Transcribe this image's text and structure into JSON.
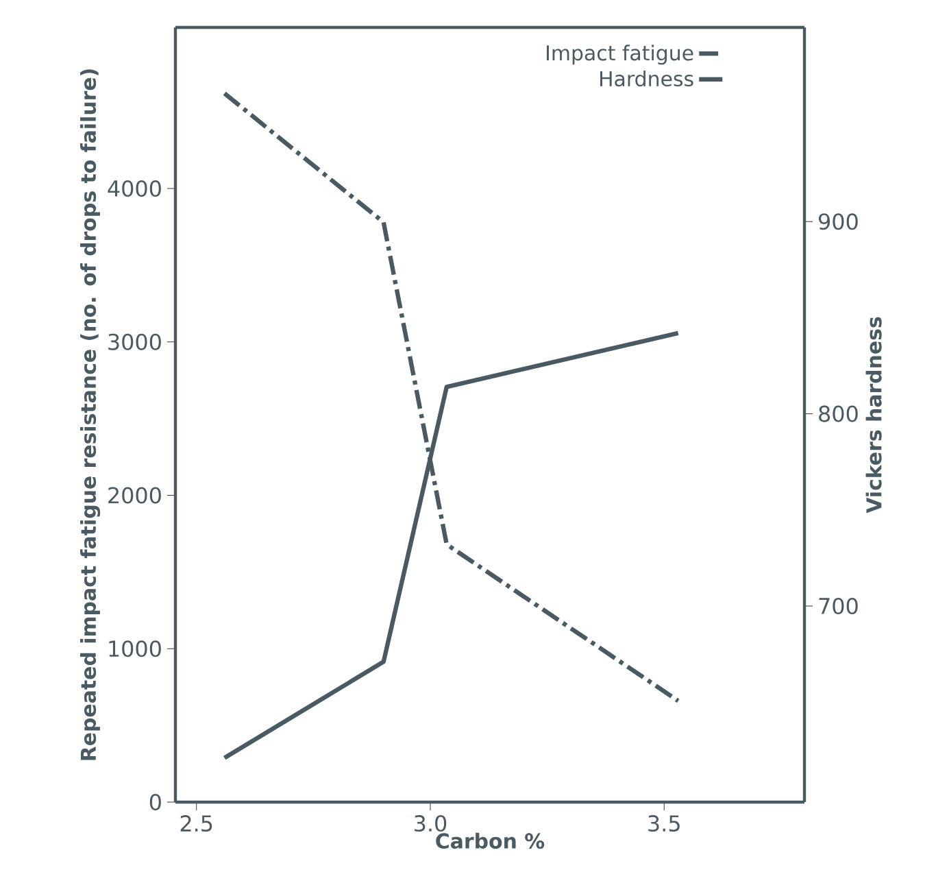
{
  "chart_data": {
    "type": "line",
    "xlabel": "Carbon %",
    "ylabel": "Repeated impact fatigue resistance (no. of drops to failure)",
    "y2label": "Vickers hardness",
    "x": [
      2.56,
      2.9,
      3.035,
      3.53
    ],
    "series": [
      {
        "name": "Impact fatigue",
        "color": "#4a5a62",
        "line_style": "dashdot",
        "values": [
          4620,
          3780,
          1680,
          660
        ]
      },
      {
        "name": "Hardness",
        "color": "#4a5a62",
        "line_style": "solid",
        "axis": "y2",
        "values": [
          621,
          671,
          814,
          842
        ]
      }
    ],
    "xlim": [
      2.455,
      3.8
    ],
    "xticks": [
      2.5,
      {
        "value": 3.0,
        "label": "3.0"
      },
      3.5
    ],
    "ylim": [
      0,
      5050
    ],
    "yticks": [
      0,
      1000,
      2000,
      3000,
      4000
    ],
    "y2lim": [
      598,
      1001
    ],
    "y2ticks": [
      700,
      800,
      900
    ],
    "grid": false,
    "legend": "top right",
    "marker": "none"
  }
}
